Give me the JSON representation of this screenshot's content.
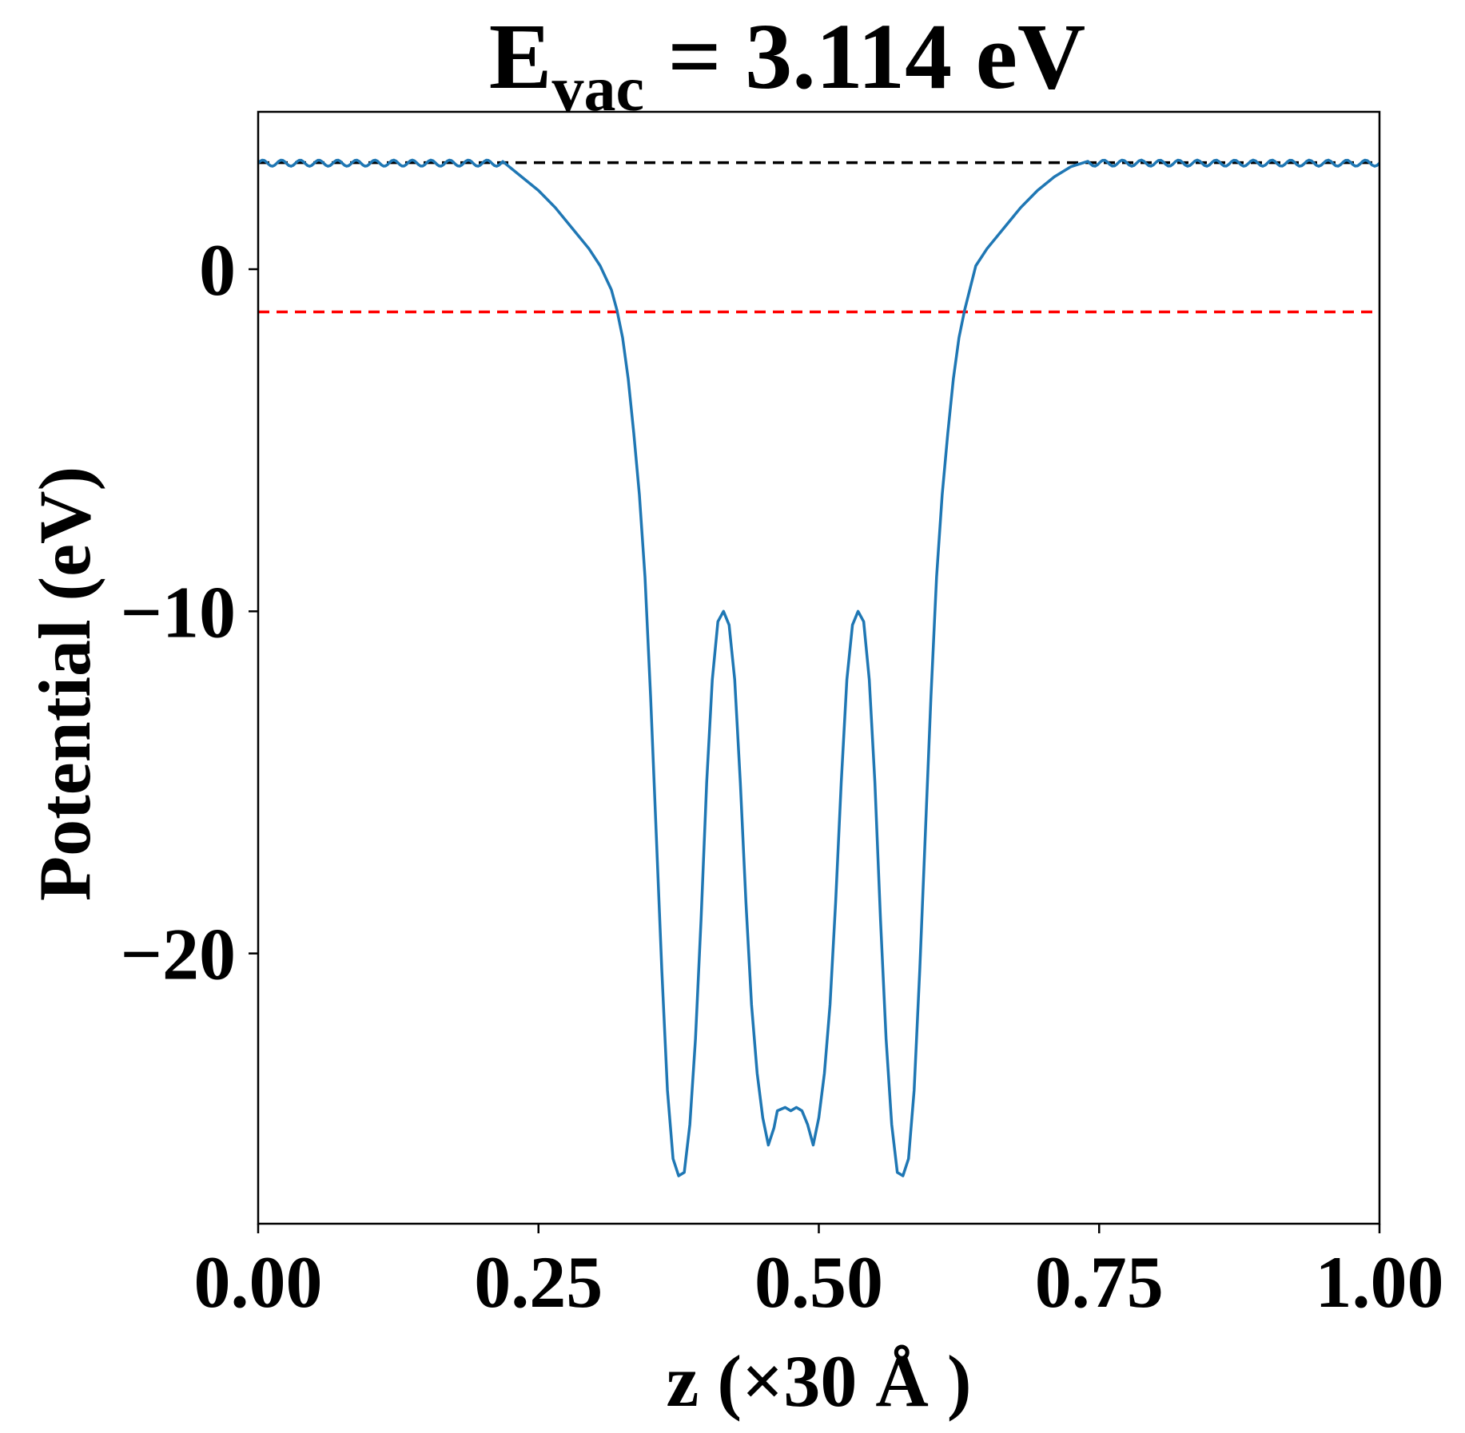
{
  "chart_data": {
    "type": "line",
    "title": {
      "main": "E",
      "subscript": "vac",
      "rest": " = 3.114 eV"
    },
    "xlabel": "z (×30 Å )",
    "ylabel": "Potential (eV)",
    "xlim": [
      0.0,
      1.0
    ],
    "ylim": [
      -27.9,
      4.6
    ],
    "xticks": [
      0.0,
      0.25,
      0.5,
      0.75,
      1.0
    ],
    "xtick_labels": [
      "0.00",
      "0.25",
      "0.50",
      "0.75",
      "1.00"
    ],
    "yticks": [
      0,
      -10,
      -20
    ],
    "ytick_labels": [
      "0",
      "−10",
      "−20"
    ],
    "grid": false,
    "reference_lines": [
      {
        "y": 3.114,
        "style": "dashed",
        "color": "#000000"
      },
      {
        "y": -1.25,
        "style": "dashed",
        "color": "#ff0000"
      }
    ],
    "series": [
      {
        "color": "#1f77b4",
        "x": [
          0.0,
          0.22,
          0.235,
          0.25,
          0.265,
          0.28,
          0.295,
          0.305,
          0.315,
          0.32,
          0.325,
          0.33,
          0.335,
          0.34,
          0.345,
          0.35,
          0.355,
          0.36,
          0.365,
          0.37,
          0.375,
          0.38,
          0.385,
          0.39,
          0.395,
          0.4,
          0.405,
          0.41,
          0.415,
          0.42,
          0.425,
          0.43,
          0.435,
          0.44,
          0.445,
          0.45,
          0.455,
          0.46,
          0.463,
          0.47,
          0.475,
          0.48,
          0.485,
          0.49,
          0.495,
          0.5,
          0.505,
          0.51,
          0.515,
          0.52,
          0.525,
          0.53,
          0.535,
          0.54,
          0.545,
          0.55,
          0.555,
          0.56,
          0.565,
          0.57,
          0.575,
          0.58,
          0.585,
          0.59,
          0.595,
          0.6,
          0.605,
          0.61,
          0.615,
          0.62,
          0.625,
          0.63,
          0.64,
          0.65,
          0.665,
          0.68,
          0.695,
          0.71,
          0.725,
          0.74,
          1.0
        ],
        "y": [
          3.1,
          3.1,
          2.7,
          2.3,
          1.8,
          1.2,
          0.6,
          0.1,
          -0.6,
          -1.2,
          -2.0,
          -3.2,
          -4.8,
          -6.6,
          -9.0,
          -12.5,
          -16.5,
          -20.5,
          -24.0,
          -26.0,
          -26.5,
          -26.4,
          -25.0,
          -22.5,
          -19.0,
          -15.0,
          -12.0,
          -10.3,
          -10.0,
          -10.4,
          -12.0,
          -15.0,
          -18.5,
          -21.5,
          -23.5,
          -24.8,
          -25.6,
          -25.1,
          -24.6,
          -24.5,
          -24.6,
          -24.5,
          -24.6,
          -25.0,
          -25.6,
          -24.8,
          -23.5,
          -21.5,
          -18.5,
          -15.0,
          -12.0,
          -10.4,
          -10.0,
          -10.3,
          -12.0,
          -15.0,
          -19.0,
          -22.5,
          -25.0,
          -26.4,
          -26.5,
          -26.0,
          -24.0,
          -20.5,
          -16.5,
          -12.5,
          -9.0,
          -6.6,
          -4.8,
          -3.2,
          -2.0,
          -1.2,
          0.1,
          0.6,
          1.2,
          1.8,
          2.3,
          2.7,
          3.0,
          3.1,
          3.1
        ]
      }
    ]
  }
}
